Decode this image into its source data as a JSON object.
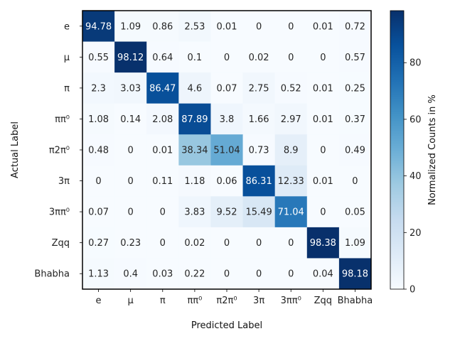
{
  "chart_data": {
    "type": "heatmap",
    "xlabel": "Predicted Label",
    "ylabel": "Actual Label",
    "x_categories": [
      "e",
      "μ",
      "π",
      "ππ⁰",
      "π2π⁰",
      "3π",
      "3ππ⁰",
      "Zqq",
      "Bhabha"
    ],
    "y_categories": [
      "e",
      "μ",
      "π",
      "ππ⁰",
      "π2π⁰",
      "3π",
      "3ππ⁰",
      "Zqq",
      "Bhabha"
    ],
    "values": [
      [
        94.78,
        1.09,
        0.86,
        2.53,
        0.01,
        0,
        0,
        0.01,
        0.72
      ],
      [
        0.55,
        98.12,
        0.64,
        0.1,
        0,
        0.02,
        0,
        0,
        0.57
      ],
      [
        2.3,
        3.03,
        86.47,
        4.6,
        0.07,
        2.75,
        0.52,
        0.01,
        0.25
      ],
      [
        1.08,
        0.14,
        2.08,
        87.89,
        3.8,
        1.66,
        2.97,
        0.01,
        0.37
      ],
      [
        0.48,
        0,
        0.01,
        38.34,
        51.04,
        0.73,
        8.9,
        0,
        0.49
      ],
      [
        0,
        0,
        0.11,
        1.18,
        0.06,
        86.31,
        12.33,
        0.01,
        0
      ],
      [
        0.07,
        0,
        0,
        3.83,
        9.52,
        15.49,
        71.04,
        0,
        0.05
      ],
      [
        0.27,
        0.23,
        0,
        0.02,
        0,
        0,
        0,
        98.38,
        1.09
      ],
      [
        1.13,
        0.4,
        0.03,
        0.22,
        0,
        0,
        0,
        0.04,
        98.18
      ]
    ],
    "colormap": "Blues",
    "vmin": 0,
    "vmax": 98.38,
    "colorbar": {
      "label": "Normalized Counts in %",
      "ticks": [
        0,
        20,
        40,
        60,
        80
      ]
    },
    "grid": false,
    "legend": "none"
  }
}
